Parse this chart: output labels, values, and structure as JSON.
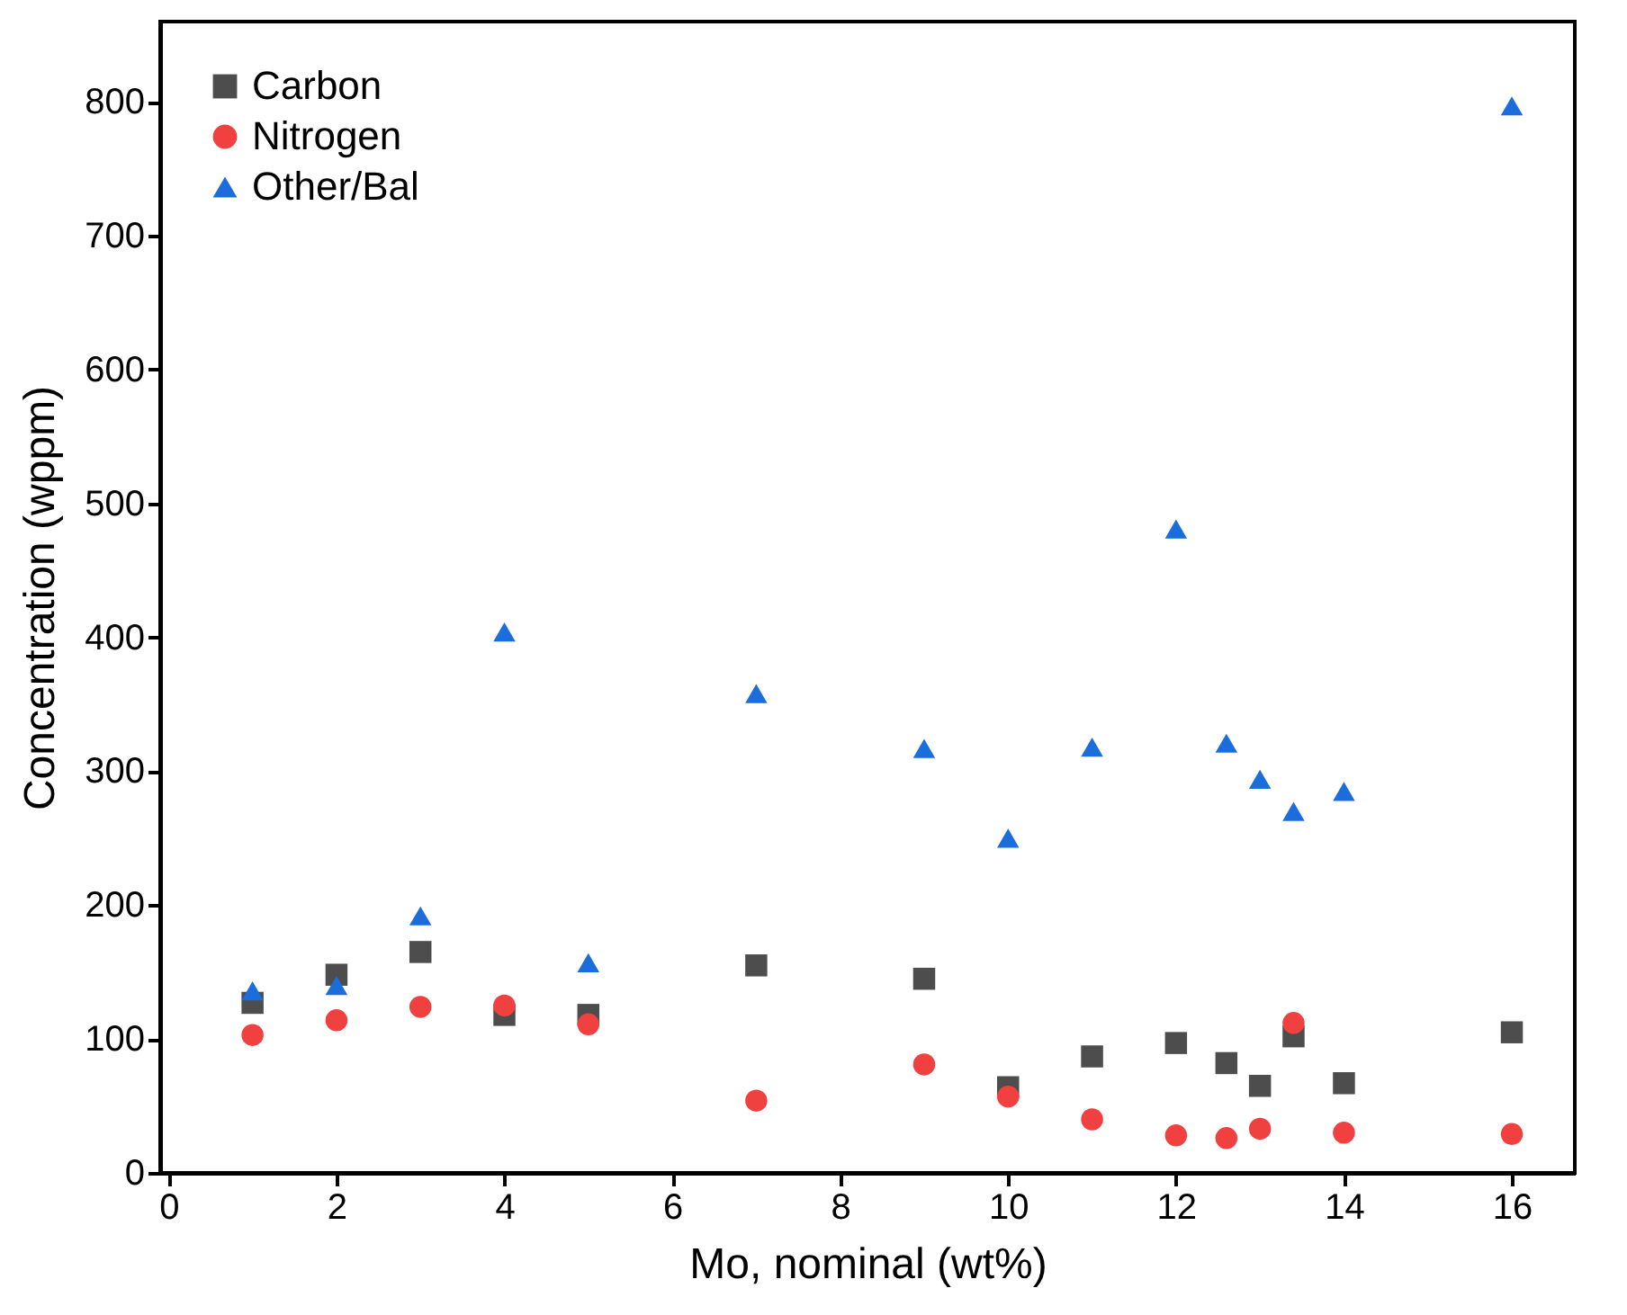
{
  "chart_data": {
    "type": "scatter",
    "xlabel": "Mo, nominal (wt%)",
    "ylabel": "Concentration (wppm)",
    "x": [
      1,
      2,
      3,
      4,
      5,
      7,
      9,
      10,
      11,
      12,
      12.6,
      13,
      13.4,
      14,
      16
    ],
    "series": [
      {
        "name": "Carbon",
        "color": "#4d4d4d",
        "marker": "square",
        "values": [
          127,
          148,
          165,
          118,
          118,
          155,
          145,
          64,
          87,
          97,
          82,
          65,
          102,
          67,
          105
        ]
      },
      {
        "name": "Nitrogen",
        "color": "#f04040",
        "marker": "circle",
        "values": [
          103,
          114,
          124,
          125,
          111,
          54,
          81,
          57,
          40,
          28,
          26,
          33,
          112,
          30,
          29
        ]
      },
      {
        "name": "Other/Bal",
        "color": "#1a6ddb",
        "marker": "triangle",
        "values": [
          136,
          140,
          192,
          404,
          157,
          358,
          317,
          250,
          318,
          481,
          321,
          294,
          270,
          285,
          797
        ]
      }
    ],
    "xlim": [
      -0.1,
      16.75
    ],
    "xticks": [
      0,
      2,
      4,
      6,
      8,
      10,
      12,
      14,
      16
    ],
    "ylim": [
      0,
      860
    ],
    "yticks": [
      0,
      100,
      200,
      300,
      400,
      500,
      600,
      700,
      800
    ],
    "grid": false,
    "legend": "top left"
  }
}
